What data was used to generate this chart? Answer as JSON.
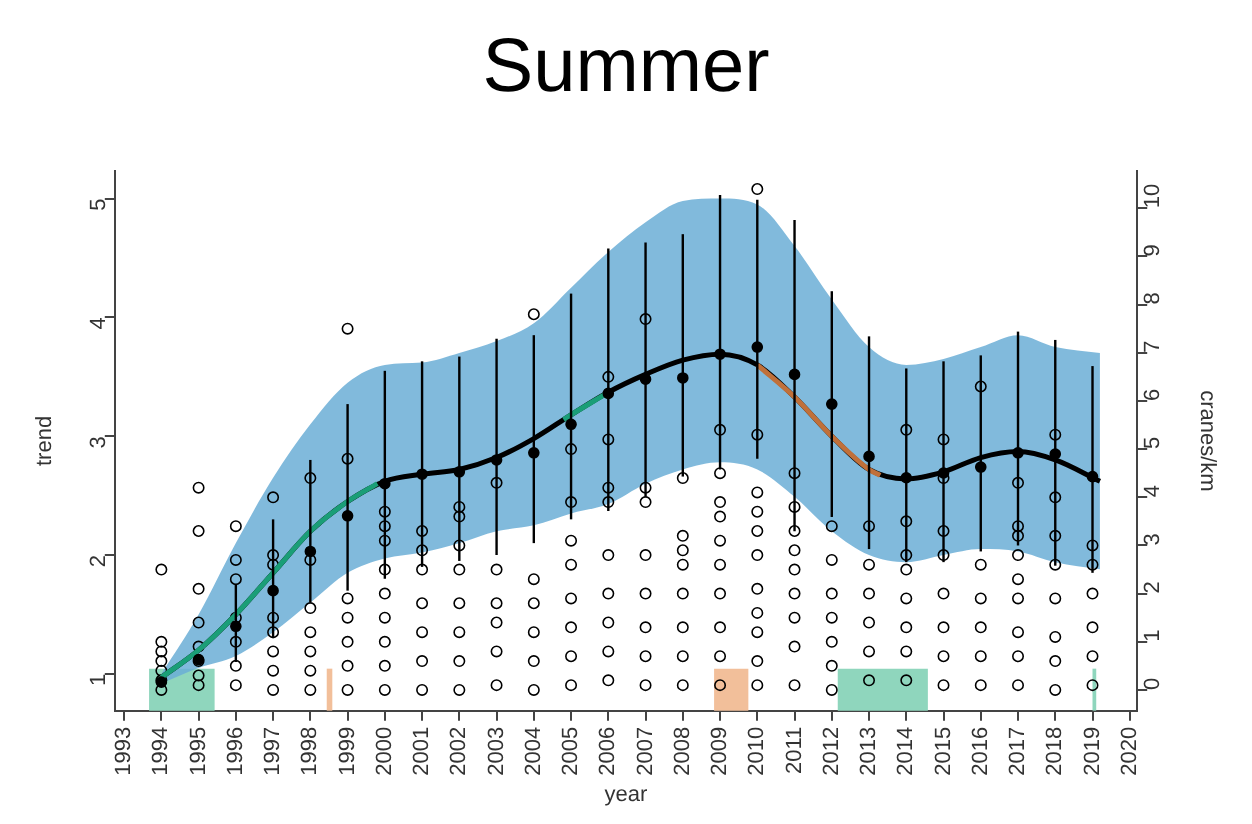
{
  "chart_data": {
    "type": "scatter",
    "title": "Summer",
    "xlabel": "year",
    "ylabel": "trend",
    "y2label": "cranes/km",
    "xlim": [
      1992.75,
      2020.2
    ],
    "xticks": [
      1993,
      1994,
      1995,
      1996,
      1997,
      1998,
      1999,
      2000,
      2001,
      2002,
      2003,
      2004,
      2005,
      2006,
      2007,
      2008,
      2009,
      2010,
      2011,
      2012,
      2013,
      2014,
      2015,
      2016,
      2017,
      2018,
      2019,
      2020
    ],
    "ylim": [
      0.69,
      5.23
    ],
    "yticks": [
      1,
      2,
      3,
      4,
      5
    ],
    "y2lim": [
      -0.43,
      10.77
    ],
    "y2ticks": [
      0,
      1,
      2,
      3,
      4,
      5,
      6,
      7,
      8,
      9,
      10
    ],
    "grid": false,
    "bands": [
      {
        "axis": "x",
        "from": 1993.67,
        "to": 1995.43,
        "color": "#8fd6bd"
      },
      {
        "axis": "x",
        "from": 1998.44,
        "to": 1998.59,
        "color": "#f2bf9a"
      },
      {
        "axis": "x",
        "from": 2008.84,
        "to": 2009.76,
        "color": "#f2bf9a"
      },
      {
        "axis": "x",
        "from": 2012.16,
        "to": 2014.58,
        "color": "#8fd6bd"
      },
      {
        "axis": "x",
        "from": 2019.0,
        "to": 2019.1,
        "color": "#8fd6bd"
      }
    ],
    "series": [
      {
        "axis": "y2",
        "color": "#000000",
        "marker": "circle",
        "x": [
          1994,
          1994,
          1994,
          1994,
          1994,
          1994,
          1994,
          1995,
          1995,
          1995,
          1995,
          1995,
          1995,
          1995,
          1995,
          1996,
          1996,
          1996,
          1996,
          1996,
          1996,
          1996,
          1997,
          1997,
          1997,
          1997,
          1997,
          1997,
          1997,
          1997,
          1998,
          1998,
          1998,
          1998,
          1998,
          1998,
          1998,
          1999,
          1999,
          1999,
          1999,
          1999,
          1999,
          1999,
          2000,
          2000,
          2000,
          2000,
          2000,
          2000,
          2000,
          2000,
          2000,
          2001,
          2001,
          2001,
          2001,
          2001,
          2001,
          2001,
          2002,
          2002,
          2002,
          2002,
          2002,
          2002,
          2002,
          2002,
          2003,
          2003,
          2003,
          2003,
          2003,
          2003,
          2004,
          2004,
          2004,
          2004,
          2004,
          2004,
          2005,
          2005,
          2005,
          2005,
          2005,
          2005,
          2005,
          2005,
          2006,
          2006,
          2006,
          2006,
          2006,
          2006,
          2006,
          2006,
          2006,
          2007,
          2007,
          2007,
          2007,
          2007,
          2007,
          2007,
          2007,
          2008,
          2008,
          2008,
          2008,
          2008,
          2008,
          2008,
          2008,
          2009,
          2009,
          2009,
          2009,
          2009,
          2009,
          2009,
          2009,
          2009,
          2009,
          2010,
          2010,
          2010,
          2010,
          2010,
          2010,
          2010,
          2010,
          2010,
          2010,
          2010,
          2011,
          2011,
          2011,
          2011,
          2011,
          2011,
          2011,
          2011,
          2011,
          2012,
          2012,
          2012,
          2012,
          2012,
          2012,
          2012,
          2013,
          2013,
          2013,
          2013,
          2013,
          2013,
          2014,
          2014,
          2014,
          2014,
          2014,
          2014,
          2014,
          2014,
          2015,
          2015,
          2015,
          2015,
          2015,
          2015,
          2015,
          2015,
          2016,
          2016,
          2016,
          2016,
          2016,
          2016,
          2017,
          2017,
          2017,
          2017,
          2017,
          2017,
          2017,
          2017,
          2017,
          2018,
          2018,
          2018,
          2018,
          2018,
          2018,
          2018,
          2018,
          2019,
          2019,
          2019,
          2019,
          2019,
          2019
        ],
        "values": [
          0,
          0.2,
          0.4,
          0.6,
          0.8,
          1.0,
          2.5,
          0.1,
          0.3,
          0.6,
          0.9,
          1.4,
          2.1,
          3.3,
          4.2,
          0.1,
          0.5,
          1.0,
          1.5,
          2.3,
          2.7,
          3.4,
          0,
          0.4,
          0.8,
          1.2,
          1.5,
          2.6,
          2.8,
          4.0,
          0,
          0.4,
          0.8,
          1.2,
          1.7,
          2.7,
          4.4,
          0,
          0.5,
          1.0,
          1.5,
          1.9,
          4.8,
          7.5,
          0,
          0.5,
          1.0,
          1.5,
          2.0,
          2.5,
          3.1,
          3.4,
          3.7,
          0,
          0.6,
          1.2,
          1.8,
          2.5,
          2.9,
          3.3,
          0,
          0.6,
          1.2,
          1.8,
          2.5,
          3.0,
          3.6,
          3.8,
          0.1,
          0.8,
          1.4,
          1.8,
          2.5,
          4.3,
          0,
          0.6,
          1.2,
          1.8,
          2.3,
          7.8,
          0.1,
          0.7,
          1.3,
          1.9,
          2.6,
          3.1,
          3.9,
          5.0,
          0.2,
          0.8,
          1.4,
          2.0,
          2.8,
          3.9,
          4.2,
          5.2,
          6.5,
          0.1,
          0.7,
          1.3,
          2.0,
          2.8,
          3.9,
          4.2,
          7.7,
          0.1,
          0.7,
          1.3,
          2.0,
          2.6,
          2.9,
          3.2,
          4.4,
          0.1,
          0.7,
          1.3,
          2.0,
          2.6,
          3.1,
          3.6,
          3.9,
          4.5,
          5.4,
          0.1,
          0.6,
          1.2,
          1.6,
          2.1,
          2.8,
          3.3,
          3.7,
          4.1,
          5.3,
          10.4,
          0.1,
          0.9,
          1.5,
          2.0,
          2.5,
          2.9,
          3.3,
          3.8,
          4.5,
          0,
          0.5,
          1.0,
          1.5,
          2.0,
          2.7,
          3.4,
          0.2,
          0.8,
          1.4,
          2.0,
          2.6,
          3.4,
          0.2,
          0.8,
          1.3,
          1.9,
          2.5,
          2.8,
          3.5,
          5.4,
          0.1,
          0.7,
          1.3,
          2.0,
          2.8,
          3.3,
          4.4,
          5.2,
          0.1,
          0.7,
          1.3,
          1.9,
          2.6,
          6.3,
          0.1,
          0.7,
          1.2,
          1.9,
          2.3,
          2.8,
          3.2,
          3.4,
          4.3,
          0,
          0.6,
          1.1,
          1.9,
          2.6,
          3.2,
          4.0,
          5.3,
          0.1,
          0.7,
          1.3,
          2.0,
          2.6,
          3.0
        ]
      },
      {
        "type": "line",
        "color": "#000000",
        "x": [
          1994,
          1995,
          1996,
          1997,
          1998,
          1999,
          2000,
          2001,
          2002,
          2003,
          2004,
          2005,
          2006,
          2007,
          2008,
          2009,
          2010,
          2011,
          2012,
          2013,
          2014,
          2015,
          2016,
          2017,
          2018,
          2019.2
        ],
        "values": [
          0.97,
          1.2,
          1.5,
          1.85,
          2.2,
          2.45,
          2.62,
          2.68,
          2.72,
          2.82,
          2.98,
          3.18,
          3.37,
          3.52,
          3.64,
          3.69,
          3.6,
          3.33,
          3.0,
          2.72,
          2.64,
          2.7,
          2.82,
          2.87,
          2.8,
          2.62
        ],
        "lower": [
          0.92,
          1.05,
          1.15,
          1.35,
          1.6,
          1.85,
          1.97,
          2.02,
          2.1,
          2.2,
          2.25,
          2.35,
          2.43,
          2.6,
          2.72,
          2.78,
          2.72,
          2.49,
          2.2,
          2.0,
          1.94,
          2.0,
          2.05,
          2.03,
          1.94,
          1.88
        ],
        "upper": [
          1.0,
          1.5,
          2.1,
          2.65,
          3.1,
          3.45,
          3.6,
          3.62,
          3.7,
          3.8,
          3.95,
          4.25,
          4.55,
          4.8,
          4.98,
          5.0,
          4.95,
          4.6,
          4.15,
          3.75,
          3.6,
          3.65,
          3.75,
          3.85,
          3.75,
          3.7
        ]
      },
      {
        "type": "line",
        "color": "#1a9e77",
        "x": [
          1994,
          1995,
          1996,
          1997,
          1998,
          1999,
          1999.8
        ],
        "values": [
          0.97,
          1.2,
          1.5,
          1.85,
          2.2,
          2.45,
          2.6
        ]
      },
      {
        "type": "line",
        "color": "#1a9e77",
        "x": [
          2004.8,
          2005,
          2005.9
        ],
        "values": [
          3.14,
          3.18,
          3.35
        ]
      },
      {
        "type": "line",
        "color": "#c0703a",
        "x": [
          2010,
          2011,
          2012,
          2013,
          2013.3
        ],
        "values": [
          3.6,
          3.33,
          3.0,
          2.72,
          2.67
        ]
      },
      {
        "color": "#000000",
        "marker": "circle",
        "x": [
          1994,
          1995,
          1996,
          1997,
          1998,
          1999,
          2000,
          2001,
          2002,
          2003,
          2004,
          2005,
          2006,
          2007,
          2008,
          2009,
          2010,
          2011,
          2012,
          2013,
          2014,
          2015,
          2016,
          2017,
          2018,
          2019
        ],
        "values": [
          0.93,
          1.12,
          1.4,
          1.7,
          2.03,
          2.33,
          2.6,
          2.68,
          2.7,
          2.8,
          2.86,
          3.1,
          3.36,
          3.48,
          3.49,
          3.69,
          3.75,
          3.52,
          3.27,
          2.83,
          2.65,
          2.69,
          2.74,
          2.86,
          2.85,
          2.66
        ],
        "errors": [
          null,
          null,
          [
            1.1,
            1.75
          ],
          [
            1.3,
            2.3
          ],
          [
            1.6,
            2.8
          ],
          [
            1.7,
            3.27
          ],
          [
            1.8,
            3.55
          ],
          [
            1.9,
            3.63
          ],
          [
            1.95,
            3.67
          ],
          [
            2.0,
            3.82
          ],
          [
            2.1,
            3.85
          ],
          [
            2.3,
            4.2
          ],
          [
            2.37,
            4.58
          ],
          [
            2.49,
            4.63
          ],
          [
            2.66,
            4.7
          ],
          [
            2.72,
            5.03
          ],
          [
            2.81,
            4.99
          ],
          [
            2.2,
            4.82
          ],
          [
            2.32,
            4.22
          ],
          [
            2.05,
            3.84
          ],
          [
            1.94,
            3.57
          ],
          [
            1.94,
            3.63
          ],
          [
            2.03,
            3.68
          ],
          [
            2.08,
            3.88
          ],
          [
            1.91,
            3.81
          ],
          [
            1.85,
            3.59
          ]
        ]
      }
    ]
  }
}
